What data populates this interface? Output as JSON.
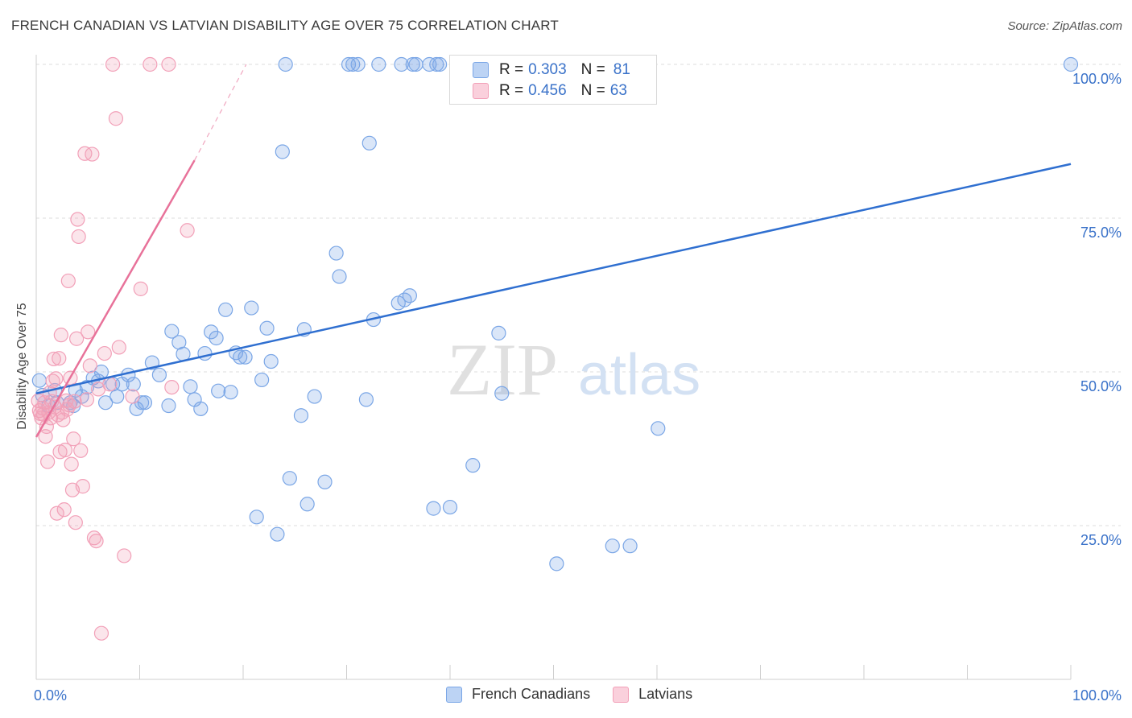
{
  "title": "FRENCH CANADIAN VS LATVIAN DISABILITY AGE OVER 75 CORRELATION CHART",
  "source": "Source: ZipAtlas.com",
  "watermark": {
    "zip": "ZIP",
    "atlas": "atlas"
  },
  "stats": [
    {
      "r_label": "R = ",
      "r_value": "0.303",
      "n_label": "N = ",
      "n_value": "81",
      "color": "#7aa6e6"
    },
    {
      "r_label": "R = ",
      "r_value": "0.456",
      "n_label": "N = ",
      "n_value": "63",
      "color": "#f2a0b8"
    }
  ],
  "legend": [
    {
      "label": "French Canadians",
      "fill": "#bcd3f4",
      "stroke": "#7aa6e6"
    },
    {
      "label": "Latvians",
      "fill": "#fad0dc",
      "stroke": "#f2a0b8"
    }
  ],
  "chart_data": {
    "type": "scatter",
    "title": "FRENCH CANADIAN VS LATVIAN DISABILITY AGE OVER 75 CORRELATION CHART",
    "xlabel": "",
    "ylabel": "Disability Age Over 75",
    "xlim": [
      0,
      100
    ],
    "ylim": [
      0,
      100
    ],
    "x_tick_labels": [
      "0.0%",
      "100.0%"
    ],
    "y_ticks": [
      25,
      50,
      75,
      100
    ],
    "y_tick_labels": [
      "25.0%",
      "50.0%",
      "75.0%",
      "100.0%"
    ],
    "grid": true,
    "legend_position": "bottom-center",
    "series": [
      {
        "name": "French Canadians",
        "color": "#7aa6e6",
        "trend_color": "#2f6fd0",
        "trend": {
          "x0": 0,
          "y0": 46.5,
          "x1": 100,
          "y1": 83.8
        },
        "points": [
          [
            0.3,
            48.6
          ],
          [
            0.6,
            46.2
          ],
          [
            1.2,
            44.5
          ],
          [
            1.8,
            47.0
          ],
          [
            2.0,
            45.0
          ],
          [
            3.3,
            45.0
          ],
          [
            3.6,
            44.5
          ],
          [
            3.8,
            47.0
          ],
          [
            4.4,
            46.0
          ],
          [
            4.9,
            47.5
          ],
          [
            5.5,
            49.0
          ],
          [
            6.0,
            48.5
          ],
          [
            6.3,
            50.0
          ],
          [
            6.7,
            45.0
          ],
          [
            7.4,
            48.0
          ],
          [
            7.8,
            46.0
          ],
          [
            8.3,
            48.0
          ],
          [
            8.9,
            49.5
          ],
          [
            9.4,
            48.0
          ],
          [
            9.7,
            44.0
          ],
          [
            10.2,
            45.0
          ],
          [
            10.5,
            45.0
          ],
          [
            11.2,
            51.5
          ],
          [
            11.9,
            49.5
          ],
          [
            12.8,
            44.5
          ],
          [
            13.1,
            56.6
          ],
          [
            13.8,
            54.8
          ],
          [
            14.2,
            52.9
          ],
          [
            14.9,
            47.6
          ],
          [
            15.3,
            45.5
          ],
          [
            15.9,
            44.0
          ],
          [
            16.3,
            53.0
          ],
          [
            16.9,
            56.5
          ],
          [
            17.4,
            55.5
          ],
          [
            17.6,
            46.9
          ],
          [
            18.3,
            60.1
          ],
          [
            18.8,
            46.7
          ],
          [
            19.3,
            53.1
          ],
          [
            19.7,
            52.4
          ],
          [
            20.2,
            52.4
          ],
          [
            20.8,
            60.4
          ],
          [
            21.3,
            26.4
          ],
          [
            21.8,
            48.7
          ],
          [
            22.3,
            57.1
          ],
          [
            22.7,
            51.7
          ],
          [
            23.3,
            23.6
          ],
          [
            23.8,
            85.8
          ],
          [
            24.1,
            100.0
          ],
          [
            24.5,
            32.7
          ],
          [
            25.6,
            42.9
          ],
          [
            25.9,
            56.9
          ],
          [
            26.2,
            28.5
          ],
          [
            26.9,
            46.0
          ],
          [
            27.9,
            32.1
          ],
          [
            29.0,
            69.3
          ],
          [
            29.3,
            65.5
          ],
          [
            30.2,
            100.0
          ],
          [
            30.6,
            100.0
          ],
          [
            31.1,
            100.0
          ],
          [
            31.9,
            45.5
          ],
          [
            32.2,
            87.2
          ],
          [
            32.6,
            58.5
          ],
          [
            33.1,
            100.0
          ],
          [
            35.0,
            61.2
          ],
          [
            35.3,
            100.0
          ],
          [
            35.6,
            61.7
          ],
          [
            36.1,
            62.4
          ],
          [
            36.4,
            100.0
          ],
          [
            36.7,
            100.0
          ],
          [
            38.0,
            100.0
          ],
          [
            38.4,
            27.8
          ],
          [
            38.7,
            100.0
          ],
          [
            39.0,
            100.0
          ],
          [
            40.0,
            28.0
          ],
          [
            42.2,
            34.8
          ],
          [
            44.7,
            56.3
          ],
          [
            45.0,
            46.5
          ],
          [
            50.3,
            18.8
          ],
          [
            55.7,
            21.7
          ],
          [
            57.4,
            21.7
          ],
          [
            60.1,
            40.8
          ],
          [
            100.0,
            100.0
          ]
        ]
      },
      {
        "name": "Latvians",
        "color": "#f2a0b8",
        "trend_color": "#e8729a",
        "trend": {
          "x0": 0,
          "y0": 39.4,
          "x1": 15.3,
          "y1": 84.4
        },
        "trend_dashed_to": {
          "x": 20.3,
          "y": 100.0
        },
        "points": [
          [
            0.2,
            45.3
          ],
          [
            0.3,
            43.7
          ],
          [
            0.4,
            43.2
          ],
          [
            0.5,
            42.5
          ],
          [
            0.6,
            44.1
          ],
          [
            0.7,
            43.1
          ],
          [
            0.8,
            45.0
          ],
          [
            0.9,
            39.5
          ],
          [
            1.0,
            41.1
          ],
          [
            1.1,
            35.4
          ],
          [
            1.2,
            43.4
          ],
          [
            1.3,
            46.6
          ],
          [
            1.4,
            42.5
          ],
          [
            1.5,
            45.2
          ],
          [
            1.6,
            48.5
          ],
          [
            1.7,
            52.1
          ],
          [
            1.8,
            44.3
          ],
          [
            1.9,
            48.9
          ],
          [
            2.0,
            27.0
          ],
          [
            2.1,
            43.0
          ],
          [
            2.2,
            52.2
          ],
          [
            2.3,
            37.0
          ],
          [
            2.4,
            56.0
          ],
          [
            2.5,
            43.4
          ],
          [
            2.6,
            42.2
          ],
          [
            2.7,
            27.6
          ],
          [
            2.8,
            37.3
          ],
          [
            2.9,
            45.3
          ],
          [
            3.0,
            43.9
          ],
          [
            3.1,
            64.8
          ],
          [
            3.2,
            44.6
          ],
          [
            3.3,
            49.0
          ],
          [
            3.4,
            35.0
          ],
          [
            3.5,
            30.8
          ],
          [
            3.6,
            39.1
          ],
          [
            3.7,
            45.2
          ],
          [
            3.8,
            25.5
          ],
          [
            3.9,
            55.4
          ],
          [
            4.0,
            74.8
          ],
          [
            4.1,
            72.0
          ],
          [
            4.3,
            37.2
          ],
          [
            4.5,
            31.4
          ],
          [
            4.7,
            85.5
          ],
          [
            4.9,
            45.5
          ],
          [
            5.0,
            56.5
          ],
          [
            5.2,
            51.0
          ],
          [
            5.4,
            85.4
          ],
          [
            5.6,
            23.0
          ],
          [
            5.8,
            22.5
          ],
          [
            6.0,
            47.2
          ],
          [
            6.3,
            7.5
          ],
          [
            6.6,
            53.0
          ],
          [
            7.1,
            48.0
          ],
          [
            7.4,
            100.0
          ],
          [
            7.7,
            91.2
          ],
          [
            8.0,
            54.0
          ],
          [
            8.5,
            20.1
          ],
          [
            9.3,
            46.0
          ],
          [
            10.1,
            63.5
          ],
          [
            11.0,
            100.0
          ],
          [
            14.6,
            73.0
          ],
          [
            12.8,
            100.0
          ],
          [
            13.1,
            47.5
          ]
        ]
      }
    ]
  }
}
